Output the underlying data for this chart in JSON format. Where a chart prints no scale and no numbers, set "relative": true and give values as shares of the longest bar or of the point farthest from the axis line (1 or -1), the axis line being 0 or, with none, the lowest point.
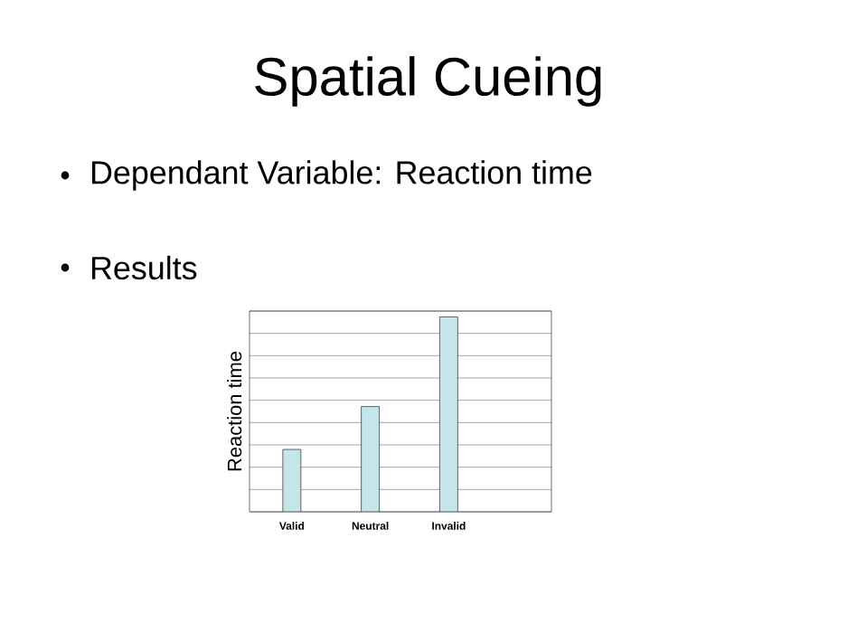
{
  "chart_data": {
    "type": "bar",
    "title": "Spatial Cueing",
    "annotations": [
      "Dependant Variable: Reaction time",
      "Results"
    ],
    "ylabel": "Reaction time",
    "categories": [
      "Valid",
      "Neutral",
      "Invalid"
    ],
    "values": [
      0.32,
      0.54,
      1
    ],
    "color": "#c4e6ea",
    "relative": true,
    "grid": "y"
  }
}
